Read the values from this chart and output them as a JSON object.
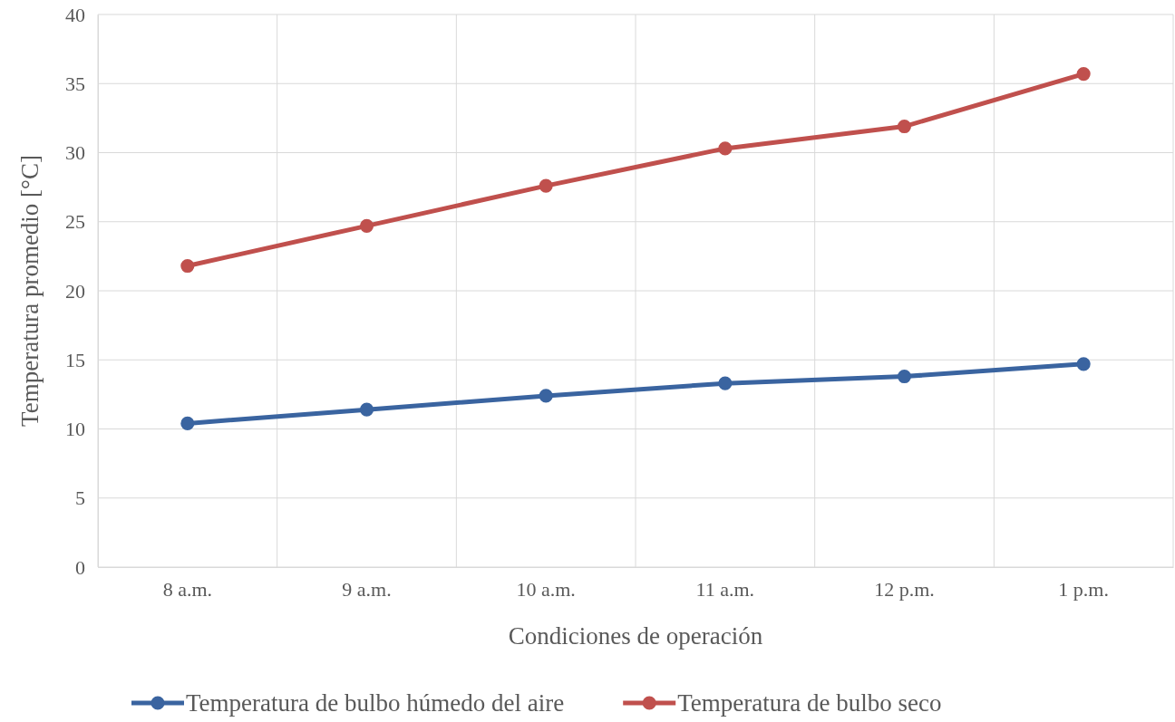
{
  "chart_data": {
    "type": "line",
    "xlabel": "Condiciones de operación",
    "ylabel": "Temperatura promedio [°C]",
    "categories": [
      "8 a.m.",
      "9 a.m.",
      "10 a.m.",
      "11 a.m.",
      "12 p.m.",
      "1 p.m."
    ],
    "series": [
      {
        "name": "Temperatura de bulbo húmedo del aire",
        "color": "#3a64a0",
        "values": [
          10.4,
          11.4,
          12.4,
          13.3,
          13.8,
          14.7
        ]
      },
      {
        "name": "Temperatura de bulbo seco",
        "color": "#c0504d",
        "values": [
          21.8,
          24.7,
          27.6,
          30.3,
          31.9,
          35.7
        ]
      }
    ],
    "ylim": [
      0,
      40
    ],
    "yticks": [
      0,
      5,
      10,
      15,
      20,
      25,
      30,
      35,
      40
    ],
    "grid": true,
    "legend": "bottom",
    "marker": "circle",
    "line_style": "solid"
  }
}
